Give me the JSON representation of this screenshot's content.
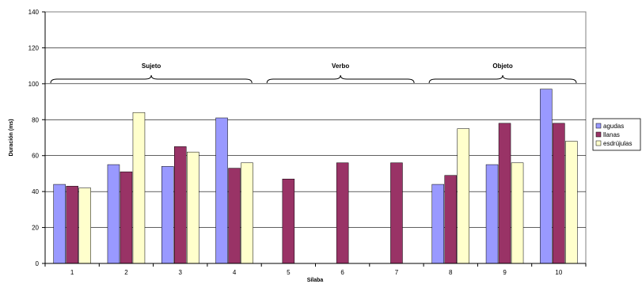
{
  "chart_data": {
    "type": "bar",
    "title": "",
    "xlabel": "Sílaba",
    "ylabel": "Duración (ms)",
    "categories": [
      "1",
      "2",
      "3",
      "4",
      "5",
      "6",
      "7",
      "8",
      "9",
      "10"
    ],
    "ylim": [
      0,
      140
    ],
    "yticks": [
      "0",
      "20",
      "40",
      "60",
      "80",
      "100",
      "120",
      "140"
    ],
    "grid": "horizontal",
    "legend_position": "right",
    "series": [
      {
        "name": "agudas",
        "color": "#9999ff",
        "values": [
          44,
          55,
          54,
          81,
          null,
          null,
          null,
          44,
          55,
          97
        ]
      },
      {
        "name": "llanas",
        "color": "#993366",
        "values": [
          43,
          51,
          65,
          53,
          47,
          56,
          56,
          49,
          78,
          78
        ]
      },
      {
        "name": "esdrújulas",
        "color": "#ffffcc",
        "values": [
          42,
          84,
          62,
          56,
          null,
          null,
          null,
          75,
          56,
          68
        ]
      }
    ],
    "annotations": [
      {
        "label": "Sujeto",
        "from_category": "1",
        "to_category": "4"
      },
      {
        "label": "Verbo",
        "from_category": "5",
        "to_category": "7"
      },
      {
        "label": "Objeto",
        "from_category": "8",
        "to_category": "10"
      }
    ]
  }
}
